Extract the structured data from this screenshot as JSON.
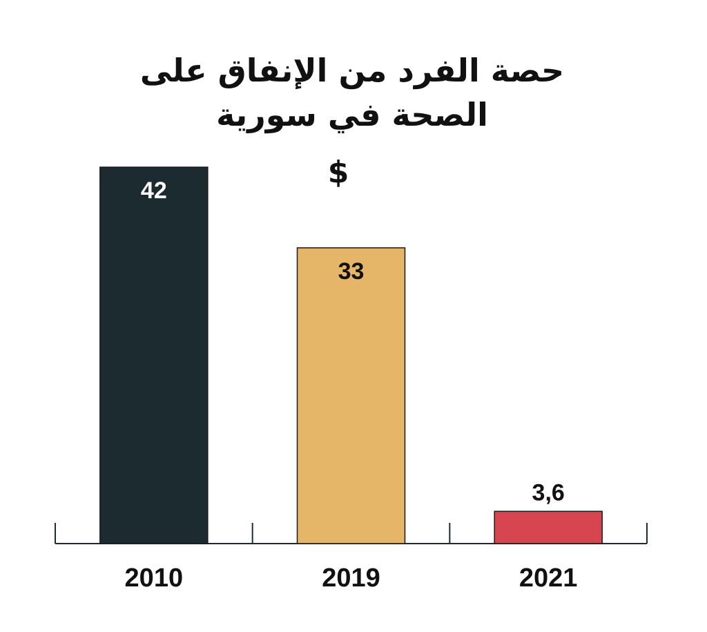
{
  "chart_data": {
    "type": "bar",
    "title_lines": [
      "حصة الفرد من الإنفاق على",
      "الصحة في سورية"
    ],
    "unit": "$",
    "categories": [
      "2010",
      "2019",
      "2021"
    ],
    "values": [
      42,
      33,
      3.6
    ],
    "value_labels": [
      "42",
      "33",
      "3,6"
    ],
    "colors": [
      "#1c2b30",
      "#e5b568",
      "#d64550"
    ],
    "label_colors": [
      "#ffffff",
      "#111111",
      "#111111"
    ],
    "label_position": [
      "inside",
      "inside",
      "above"
    ],
    "axis_color": "#1c2b30",
    "xlabel": "",
    "ylabel": "",
    "ylim": [
      0,
      42
    ],
    "grid": false,
    "legend": "none"
  }
}
